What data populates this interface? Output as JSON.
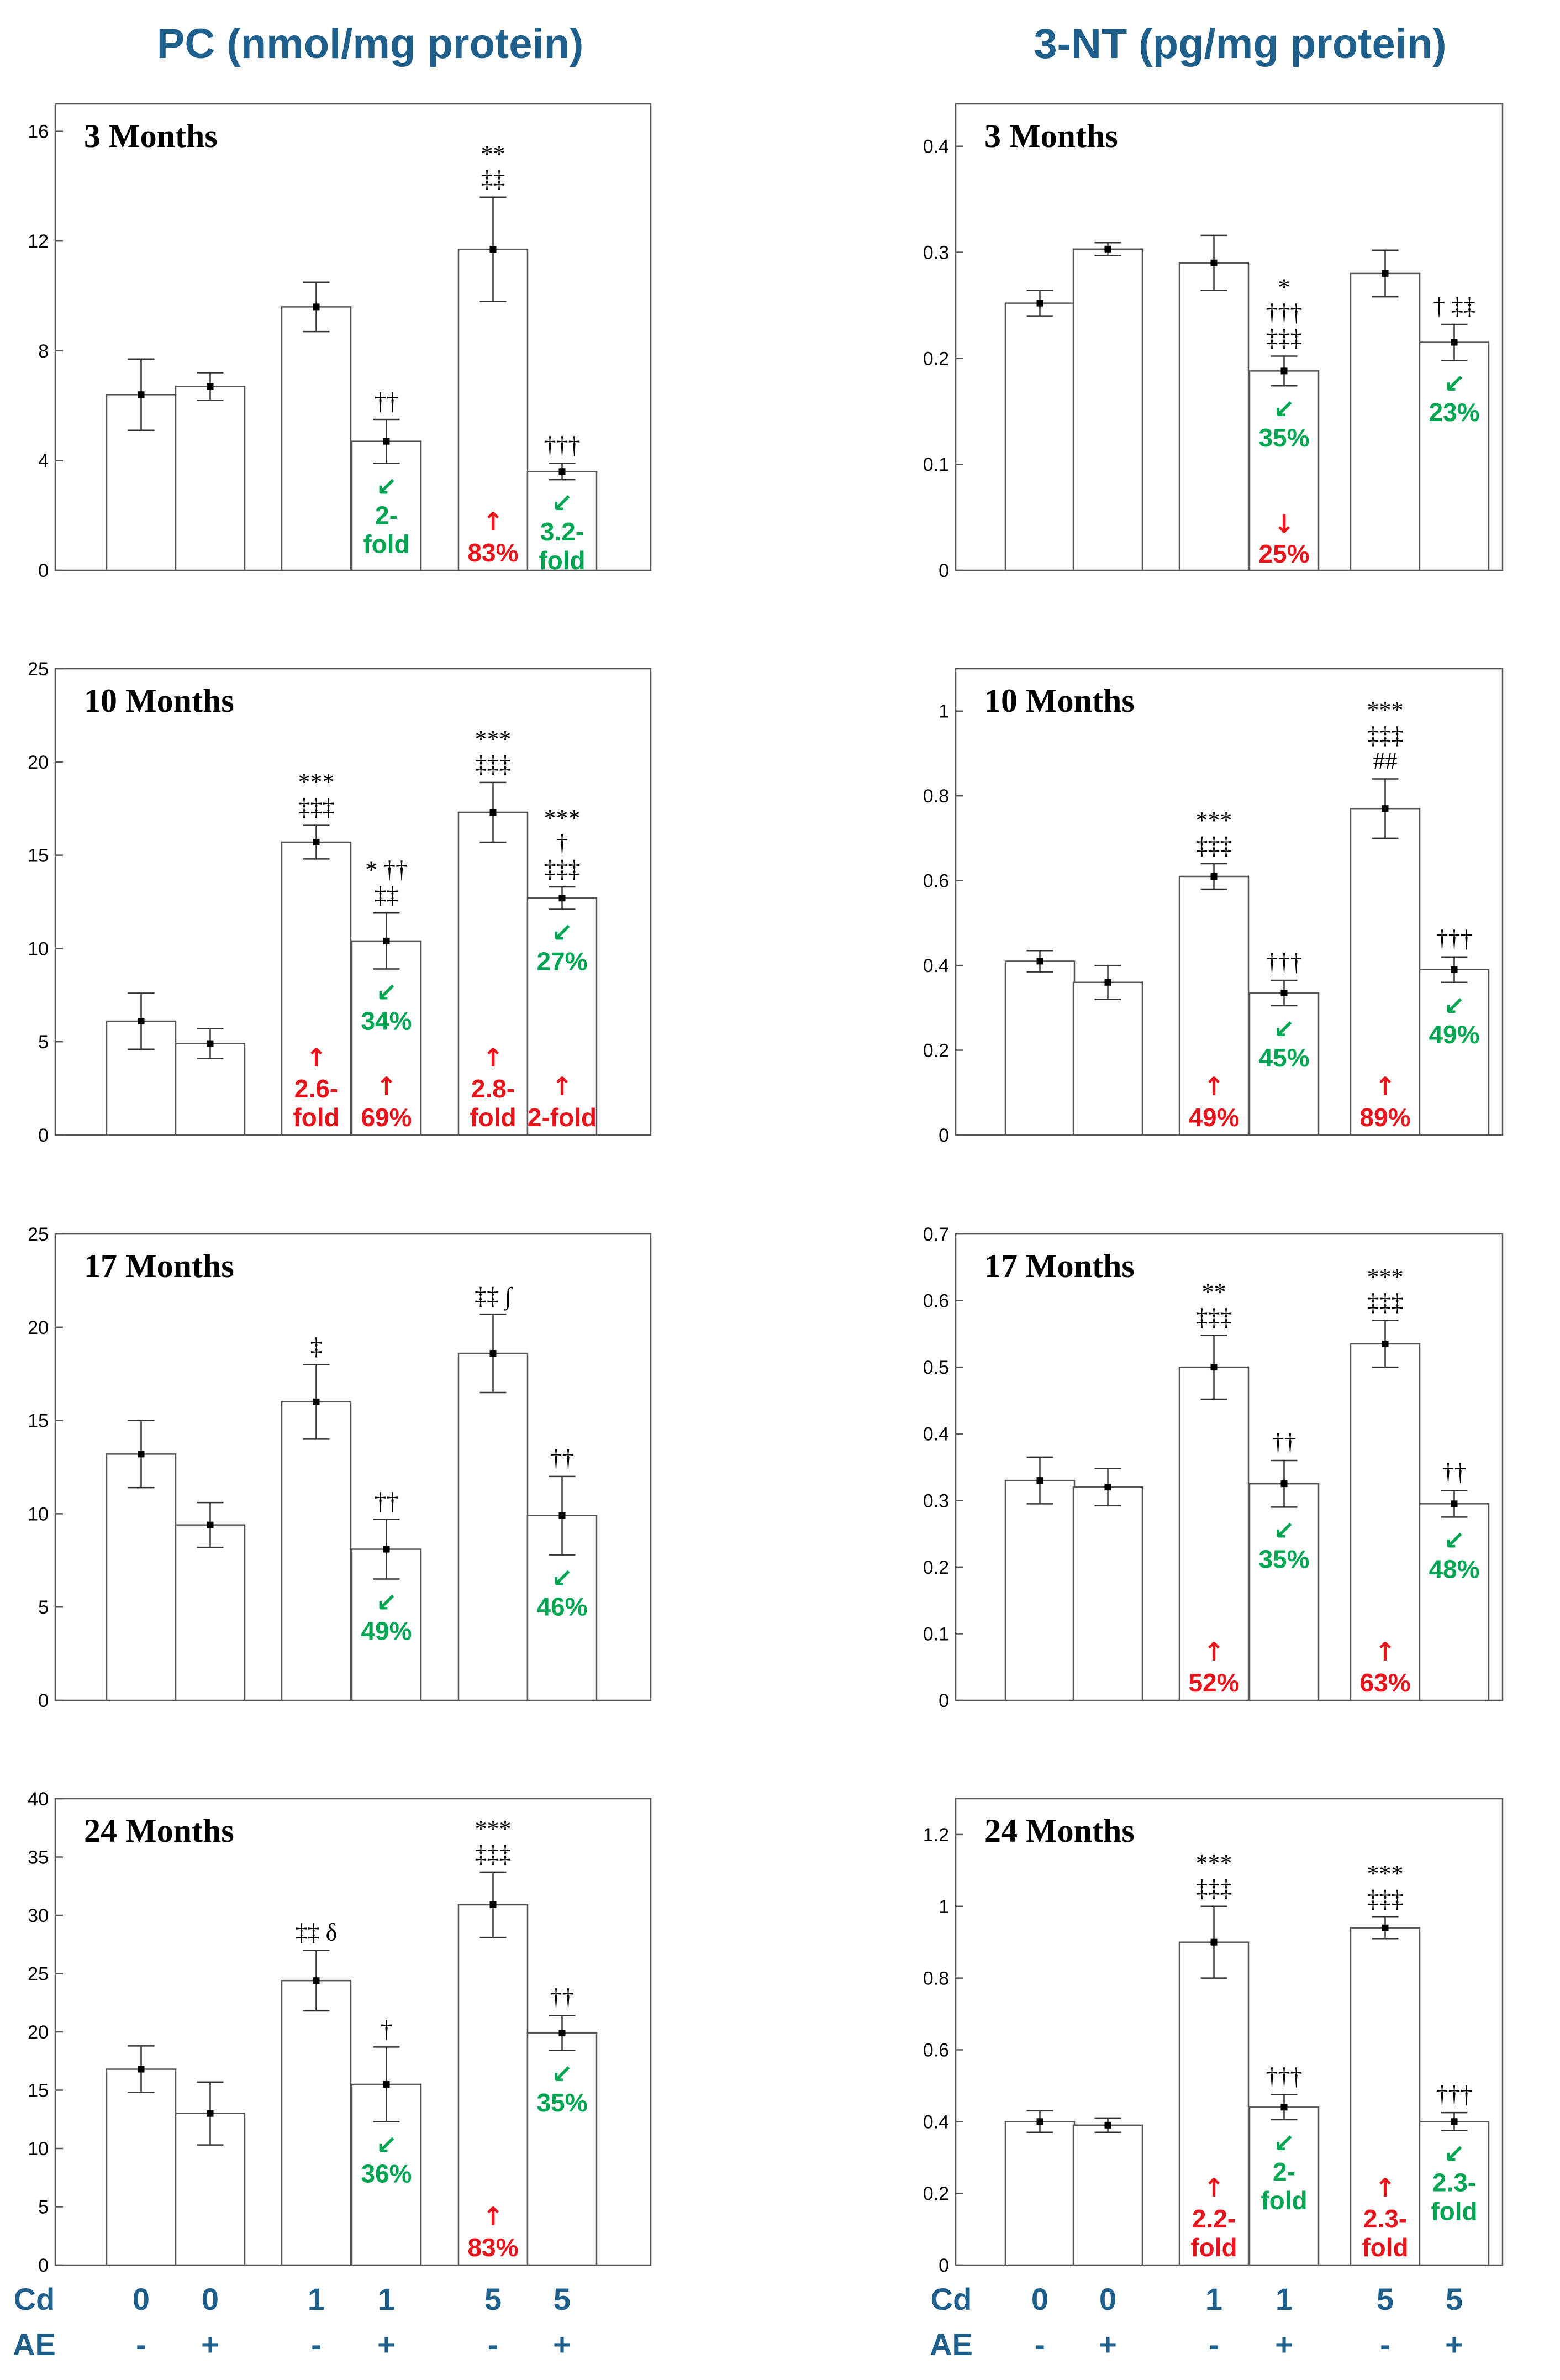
{
  "titles": [
    "PC (nmol/mg protein)",
    "3-NT (pg/mg protein)"
  ],
  "colors": {
    "increase": "#e8141b",
    "decrease": "#00a651",
    "title": "#1f5f8b",
    "significance": "#000000"
  },
  "conditions": {
    "cd_label": "Cd",
    "ae_label": "AE",
    "cd": [
      "0",
      "0",
      "1",
      "1",
      "5",
      "5"
    ],
    "ae": [
      "-",
      "+",
      "-",
      "+",
      "-",
      "+"
    ]
  },
  "chart_data": [
    {
      "type": "bar",
      "marker": "PC",
      "period": "3 Months",
      "ylim": [
        0,
        17
      ],
      "ticks": [
        0,
        4,
        8,
        12,
        16
      ],
      "values": [
        6.4,
        6.7,
        9.6,
        4.7,
        11.7,
        3.6
      ],
      "errors": [
        1.3,
        0.5,
        0.9,
        0.8,
        1.9,
        0.3
      ],
      "significance": [
        [],
        [],
        [],
        [
          "††"
        ],
        [
          "**",
          "‡‡"
        ],
        [
          "†††"
        ]
      ],
      "up": [
        null,
        null,
        null,
        null,
        "83%",
        null
      ],
      "down": [
        null,
        null,
        null,
        "2-fold",
        null,
        "3.2-fold"
      ],
      "down_red": [
        null,
        null,
        null,
        null,
        null,
        null
      ]
    },
    {
      "type": "bar",
      "marker": "3-NT",
      "period": "3 Months",
      "ylim": [
        0,
        0.44
      ],
      "ticks": [
        0,
        0.1,
        0.2,
        0.3,
        0.4
      ],
      "values": [
        0.252,
        0.303,
        0.29,
        0.188,
        0.28,
        0.215
      ],
      "errors": [
        0.012,
        0.006,
        0.026,
        0.014,
        0.022,
        0.017
      ],
      "significance": [
        [],
        [],
        [],
        [
          "*",
          "†††",
          "‡‡‡"
        ],
        [],
        [
          "† ‡‡"
        ]
      ],
      "up": [
        null,
        null,
        null,
        null,
        null,
        null
      ],
      "down": [
        null,
        null,
        null,
        "35%",
        null,
        "23%"
      ],
      "down_red": [
        null,
        null,
        null,
        "25%",
        null,
        null
      ]
    },
    {
      "type": "bar",
      "marker": "PC",
      "period": "10 Months",
      "ylim": [
        0,
        25
      ],
      "ticks": [
        0,
        5,
        10,
        15,
        20,
        25
      ],
      "values": [
        6.1,
        4.9,
        15.7,
        10.4,
        17.3,
        12.7
      ],
      "errors": [
        1.5,
        0.8,
        0.9,
        1.5,
        1.6,
        0.6
      ],
      "significance": [
        [],
        [],
        [
          "***",
          "‡‡‡"
        ],
        [
          "* ††",
          "‡‡"
        ],
        [
          "***",
          "‡‡‡"
        ],
        [
          "***",
          "†",
          "‡‡‡"
        ]
      ],
      "up": [
        null,
        null,
        "2.6-fold",
        "69%",
        "2.8-fold",
        "2-fold"
      ],
      "down": [
        null,
        null,
        null,
        "34%",
        null,
        "27%"
      ],
      "down_red": [
        null,
        null,
        null,
        null,
        null,
        null
      ]
    },
    {
      "type": "bar",
      "marker": "3-NT",
      "period": "10 Months",
      "ylim": [
        0,
        1.1
      ],
      "ticks": [
        0,
        0.2,
        0.4,
        0.6,
        0.8,
        1
      ],
      "values": [
        0.41,
        0.36,
        0.61,
        0.335,
        0.77,
        0.39
      ],
      "errors": [
        0.025,
        0.04,
        0.03,
        0.03,
        0.07,
        0.03
      ],
      "significance": [
        [],
        [],
        [
          "***",
          "‡‡‡"
        ],
        [
          "†††"
        ],
        [
          "***",
          "‡‡‡",
          "##"
        ],
        [
          "†††"
        ]
      ],
      "up": [
        null,
        null,
        "49%",
        null,
        "89%",
        null
      ],
      "down": [
        null,
        null,
        null,
        "45%",
        null,
        "49%"
      ],
      "down_red": [
        null,
        null,
        null,
        null,
        null,
        null
      ]
    },
    {
      "type": "bar",
      "marker": "PC",
      "period": "17 Months",
      "ylim": [
        0,
        25
      ],
      "ticks": [
        0,
        5,
        10,
        15,
        20,
        25
      ],
      "values": [
        13.2,
        9.4,
        16.0,
        8.1,
        18.6,
        9.9
      ],
      "errors": [
        1.8,
        1.2,
        2.0,
        1.6,
        2.1,
        2.1
      ],
      "significance": [
        [],
        [],
        [
          "‡"
        ],
        [
          "††"
        ],
        [
          "‡‡ ∫"
        ],
        [
          "††"
        ]
      ],
      "up": [
        null,
        null,
        null,
        null,
        null,
        null
      ],
      "down": [
        null,
        null,
        null,
        "49%",
        null,
        "46%"
      ],
      "down_red": [
        null,
        null,
        null,
        null,
        null,
        null
      ]
    },
    {
      "type": "bar",
      "marker": "3-NT",
      "period": "17 Months",
      "ylim": [
        0,
        0.7
      ],
      "ticks": [
        0,
        0.1,
        0.2,
        0.3,
        0.4,
        0.5,
        0.6,
        0.7
      ],
      "values": [
        0.33,
        0.32,
        0.5,
        0.325,
        0.535,
        0.295
      ],
      "errors": [
        0.035,
        0.028,
        0.048,
        0.035,
        0.035,
        0.02
      ],
      "significance": [
        [],
        [],
        [
          "**",
          "‡‡‡"
        ],
        [
          "††"
        ],
        [
          "***",
          "‡‡‡"
        ],
        [
          "††"
        ]
      ],
      "up": [
        null,
        null,
        "52%",
        null,
        "63%",
        null
      ],
      "down": [
        null,
        null,
        null,
        "35%",
        null,
        "48%"
      ],
      "down_red": [
        null,
        null,
        null,
        null,
        null,
        null
      ]
    },
    {
      "type": "bar",
      "marker": "PC",
      "period": "24 Months",
      "ylim": [
        0,
        40
      ],
      "ticks": [
        0,
        5,
        10,
        15,
        20,
        25,
        30,
        35,
        40
      ],
      "values": [
        16.8,
        13.0,
        24.4,
        15.5,
        30.9,
        19.9
      ],
      "errors": [
        2.0,
        2.7,
        2.6,
        3.2,
        2.8,
        1.5
      ],
      "significance": [
        [],
        [],
        [
          "‡‡ δ"
        ],
        [
          "†"
        ],
        [
          "***",
          "‡‡‡"
        ],
        [
          "††"
        ]
      ],
      "up": [
        null,
        null,
        null,
        null,
        "83%",
        null
      ],
      "down": [
        null,
        null,
        null,
        "36%",
        null,
        "35%"
      ],
      "down_red": [
        null,
        null,
        null,
        null,
        null,
        null
      ]
    },
    {
      "type": "bar",
      "marker": "3-NT",
      "period": "24 Months",
      "ylim": [
        0,
        1.3
      ],
      "ticks": [
        0,
        0.2,
        0.4,
        0.6,
        0.8,
        1,
        1.2
      ],
      "values": [
        0.4,
        0.39,
        0.9,
        0.44,
        0.94,
        0.4
      ],
      "errors": [
        0.03,
        0.02,
        0.1,
        0.035,
        0.03,
        0.025
      ],
      "significance": [
        [],
        [],
        [
          "***",
          "‡‡‡"
        ],
        [
          "†††"
        ],
        [
          "***",
          "‡‡‡"
        ],
        [
          "†††"
        ]
      ],
      "up": [
        null,
        null,
        "2.2-fold",
        null,
        "2.3-fold",
        null
      ],
      "down": [
        null,
        null,
        null,
        "2-fold",
        null,
        "2.3-fold"
      ],
      "down_red": [
        null,
        null,
        null,
        null,
        null,
        null
      ]
    }
  ]
}
